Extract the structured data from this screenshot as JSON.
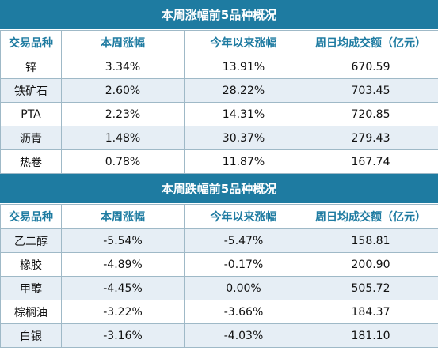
{
  "tables": [
    {
      "title": "本周涨幅前5品种概况",
      "headers": [
        "交易品种",
        "本周涨幅",
        "今年以来涨幅",
        "周日均成交额（亿元）"
      ],
      "rows": [
        [
          "锌",
          "3.34%",
          "13.91%",
          "670.59"
        ],
        [
          "铁矿石",
          "2.60%",
          "28.22%",
          "703.45"
        ],
        [
          "PTA",
          "2.23%",
          "14.31%",
          "720.85"
        ],
        [
          "沥青",
          "1.48%",
          "30.37%",
          "279.43"
        ],
        [
          "热卷",
          "0.78%",
          "11.87%",
          "167.74"
        ]
      ]
    },
    {
      "title": "本周跌幅前5品种概况",
      "headers": [
        "交易品种",
        "本周涨幅",
        "今年以来涨幅",
        "周日均成交额（亿元）"
      ],
      "rows": [
        [
          "乙二醇",
          "-5.54%",
          "-5.47%",
          "158.81"
        ],
        [
          "橡胶",
          "-4.89%",
          "-0.17%",
          "200.90"
        ],
        [
          "甲醇",
          "-4.45%",
          "0.00%",
          "505.72"
        ],
        [
          "棕榈油",
          "-3.22%",
          "-3.66%",
          "184.37"
        ],
        [
          "白银",
          "-3.16%",
          "-4.03%",
          "181.10"
        ]
      ]
    }
  ],
  "colors": {
    "header_bg": "#1e7ba1",
    "header_text": "#1e7ba1",
    "stripe": "#e6eef5",
    "border": "#9fb9c7"
  }
}
